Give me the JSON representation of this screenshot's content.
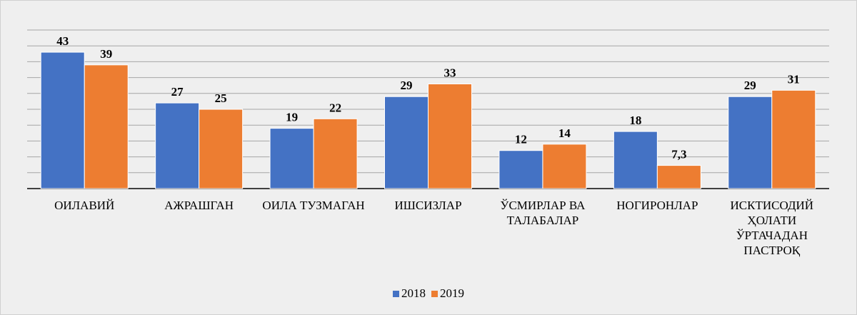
{
  "chart_data": {
    "type": "bar",
    "categories": [
      "ОИЛАВИЙ",
      "АЖРАШГАН",
      "ОИЛА ТУЗМАГАН",
      "ИШСИЗЛАР",
      "ЎСМИРЛАР ВА ТАЛАБАЛАР",
      "НОГИРОНЛАР",
      "ИСКТИСОДИЙ ҲОЛАТИ ЎРТАЧАДАН ПАСТРОҚ"
    ],
    "series": [
      {
        "name": "2018",
        "color": "#4472c4",
        "values": [
          43,
          27,
          19,
          29,
          12,
          18,
          29
        ]
      },
      {
        "name": "2019",
        "color": "#ed7d31",
        "values": [
          39,
          25,
          22,
          33,
          14,
          7.3,
          31
        ],
        "value_labels": [
          "39",
          "25",
          "22",
          "33",
          "14",
          "7,3",
          "31"
        ]
      }
    ],
    "ylim": [
      0,
      50
    ],
    "yticks": [
      0,
      5,
      10,
      15,
      20,
      25,
      30,
      35,
      40,
      45,
      50
    ],
    "grid": true,
    "legend": "bottom"
  }
}
